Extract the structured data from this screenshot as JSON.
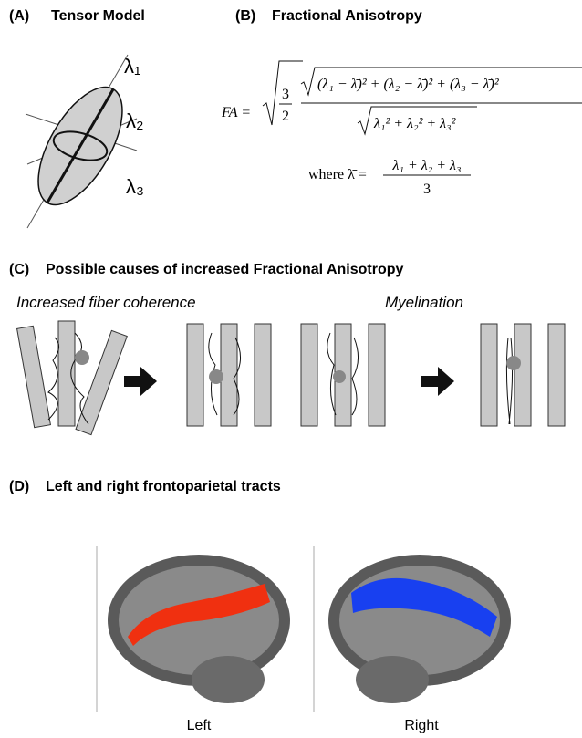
{
  "panel_a": {
    "label": "(A)",
    "title": "Tensor Model",
    "axes": [
      "λ₁",
      "λ₂",
      "λ₃"
    ]
  },
  "panel_b": {
    "label": "(B)",
    "title": "Fractional Anisotropy",
    "formula": {
      "lhs": "FA =",
      "sqrt_num": "3",
      "sqrt_den": "2",
      "numerator": "(λ₁ − λ̄)² + (λ₂ − λ̄)² + (λ₃ − λ̄)²",
      "denominator": "λ₁² + λ₂² + λ₃²",
      "where": "where λ̄ =",
      "mean_num": "λ₁ + λ₂ + λ₃",
      "mean_den": "3"
    }
  },
  "panel_c": {
    "label": "(C)",
    "title": "Possible causes of increased Fractional Anisotropy",
    "captions": [
      "Increased fiber coherence",
      "Myelination"
    ]
  },
  "panel_d": {
    "label": "(D)",
    "title": "Left and right frontoparietal tracts",
    "captions": [
      "Left",
      "Right"
    ]
  }
}
